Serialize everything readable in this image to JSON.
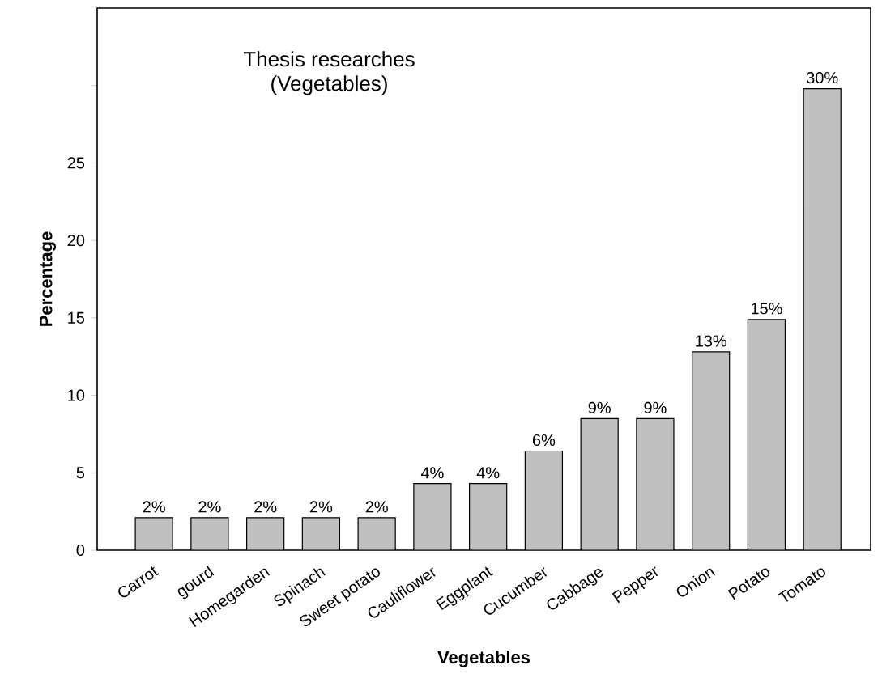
{
  "chart_data": {
    "type": "bar",
    "title": "Thesis researches",
    "subtitle": "(Vegetables)",
    "xlabel": "Vegetables",
    "ylabel": "Percentage",
    "categories": [
      "Carrot",
      "gourd",
      "Homegarden",
      "Spinach",
      "Sweet potato",
      "Cauliflower",
      "Eggplant",
      "Cucumber",
      "Cabbage",
      "Pepper",
      "Onion",
      "Potato",
      "Tomato"
    ],
    "values": [
      2.1,
      2.1,
      2.1,
      2.1,
      2.1,
      4.3,
      4.3,
      6.4,
      8.5,
      8.5,
      12.8,
      14.9,
      29.8
    ],
    "value_labels": [
      "2%",
      "2%",
      "2%",
      "2%",
      "2%",
      "4%",
      "4%",
      "6%",
      "9%",
      "9%",
      "13%",
      "15%",
      "30%"
    ],
    "color": "#c0c0c0",
    "ylim": [
      0,
      35
    ],
    "yticks": [
      0,
      5,
      10,
      15,
      20,
      25,
      {
        "value": 30,
        "label": null
      }
    ]
  }
}
